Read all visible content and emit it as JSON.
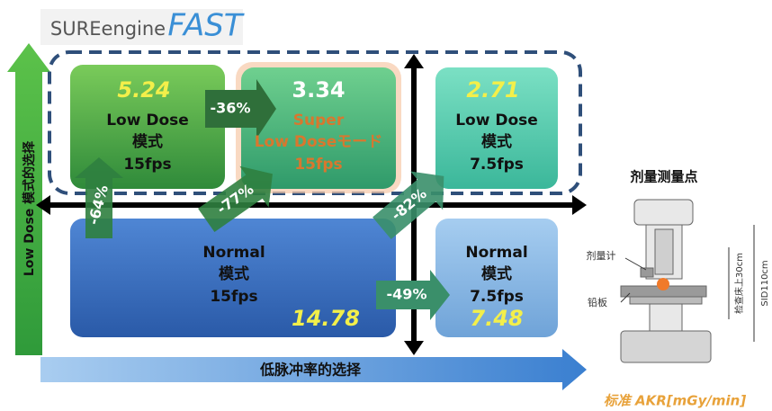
{
  "logo": {
    "name": "SUREengine",
    "fast": "FAST"
  },
  "axes": {
    "vertical": "Low Dose 模式的选择",
    "horizontal": "低脉冲率的选择"
  },
  "boxes": [
    {
      "value": 5.24,
      "lines": [
        "Low Dose",
        "模式",
        "15fps"
      ]
    },
    {
      "value": 3.34,
      "lines": [
        "Super",
        "Low Doseモード",
        "15fps"
      ]
    },
    {
      "value": 2.71,
      "lines": [
        "Low Dose",
        "模式",
        "7.5fps"
      ]
    },
    {
      "value": 14.78,
      "lines": [
        "Normal",
        "模式",
        "15fps"
      ]
    },
    {
      "value": 7.48,
      "lines": [
        "Normal",
        "模式",
        "7.5fps"
      ]
    }
  ],
  "reductions": [
    "-36%",
    "-64%",
    "-77%",
    "-82%",
    "-49%"
  ],
  "illustration": {
    "title": "剂量测量点",
    "dosimeter": "剂量计",
    "lead_plate": "铅板",
    "table_distance": "检查床上30cm",
    "sid": "SID110cm"
  },
  "caption": "标准 AKR[mGy/min]"
}
